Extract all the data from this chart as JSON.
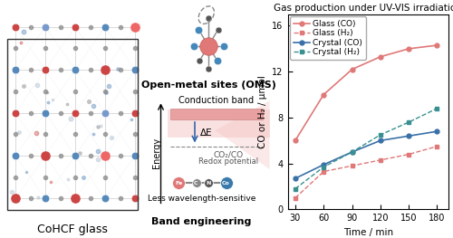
{
  "title": "Gas production under UV-VIS irradiation",
  "xlabel": "Time / min",
  "ylabel": "CO or H₂ / μmol",
  "x": [
    30,
    60,
    90,
    120,
    150,
    180
  ],
  "glass_co": [
    6.0,
    10.0,
    12.2,
    13.3,
    14.0,
    14.3
  ],
  "glass_h2": [
    1.0,
    3.3,
    3.8,
    4.3,
    4.8,
    5.5
  ],
  "crystal_co": [
    2.7,
    3.9,
    5.0,
    6.0,
    6.4,
    6.8
  ],
  "crystal_h2": [
    1.8,
    3.7,
    5.0,
    6.5,
    7.6,
    8.8
  ],
  "glass_co_color": "#e07878",
  "glass_h2_color": "#e07878",
  "crystal_co_color": "#3a70a8",
  "crystal_h2_color": "#3a9090",
  "ylim": [
    0,
    17
  ],
  "yticks": [
    0,
    4,
    8,
    12,
    16
  ],
  "xlim": [
    22,
    192
  ],
  "xticks": [
    30,
    60,
    90,
    120,
    150,
    180
  ],
  "legend_labels": [
    "Glass (CO)",
    "Glass (H₂)",
    "Crystal (CO)",
    "Crystal (H₂)"
  ],
  "title_fontsize": 7.5,
  "axis_fontsize": 7.5,
  "tick_fontsize": 7,
  "legend_fontsize": 6.5,
  "left_title": "CoHCF glass",
  "mid_title1": "Open-metal sites (OMS)",
  "mid_title2": "Band engineering",
  "band_label1": "Conduction band",
  "band_label2": "ΔE",
  "band_label3": "CO₂/CO",
  "band_label4": "Redox potential",
  "band_label5": "Less wavelength-sensitive",
  "band_label6": "Energy"
}
